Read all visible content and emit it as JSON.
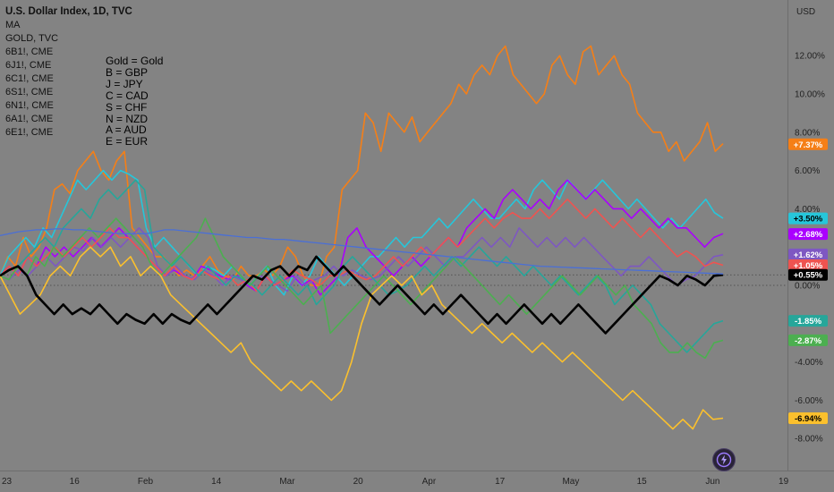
{
  "legend": {
    "title": "U.S. Dollar Index, 1D, TVC",
    "items": [
      "MA",
      "GOLD, TVC",
      "6B1!, CME",
      "6J1!, CME",
      "6C1!, CME",
      "6S1!, CME",
      "6N1!, CME",
      "6A1!, CME",
      "6E1!, CME"
    ]
  },
  "key_note": [
    "Gold = Gold",
    "B = GBP",
    "J = JPY",
    "C = CAD",
    "S = CHF",
    "N = NZD",
    "A = AUD",
    "E = EUR"
  ],
  "currency_label": "USD",
  "chart_data": {
    "type": "line",
    "x_tick_labels": [
      "23",
      "16",
      "Feb",
      "14",
      "Mar",
      "20",
      "Apr",
      "17",
      "May",
      "15",
      "Jun",
      "19"
    ],
    "y_ticks": [
      "12.00%",
      "10.00%",
      "8.00%",
      "6.00%",
      "4.00%",
      "0.00%",
      "-4.00%",
      "-6.00%",
      "-8.00%"
    ],
    "ylim": [
      -9.5,
      14
    ],
    "series_badges": [
      {
        "label": "+7.37%",
        "value": 7.37,
        "color": "#f57f17"
      },
      {
        "label": "+3.50%",
        "value": 3.5,
        "color": "#26c6da"
      },
      {
        "label": "+2.68%",
        "value": 2.68,
        "color": "#aa00ff"
      },
      {
        "label": "+1.62%",
        "value": 1.62,
        "color": "#7e57c2"
      },
      {
        "label": "+1.05%",
        "value": 1.05,
        "color": "#ef5350"
      },
      {
        "label": "+0.55%",
        "value": 0.55,
        "color": "#000000"
      },
      {
        "label": "-1.85%",
        "value": -1.85,
        "color": "#26a69a"
      },
      {
        "label": "-2.87%",
        "value": -2.87,
        "color": "#4caf50"
      },
      {
        "label": "-6.94%",
        "value": -6.94,
        "color": "#fbc02d"
      }
    ],
    "series": [
      {
        "color": "#f57f17",
        "values": [
          0.5,
          1.5,
          1.0,
          2.5,
          1.5,
          2.0,
          3.0,
          5.0,
          5.3,
          4.8,
          6.0,
          6.5,
          7.0,
          6.0,
          5.5,
          6.5,
          7.0,
          3.0,
          2.5,
          2.0,
          1.5,
          1.5,
          1.0,
          0.5,
          0.8,
          0.5,
          1.0,
          1.5,
          0.8,
          0.5,
          0.3,
          1.0,
          0.5,
          0.5,
          0.8,
          0.5,
          1.0,
          2.0,
          1.5,
          0.5,
          0.0,
          0.0,
          1.5,
          2.0,
          5.0,
          5.5,
          6.0,
          9.0,
          8.5,
          7.0,
          9.0,
          8.5,
          8.0,
          8.8,
          7.5,
          8.0,
          8.5,
          9.0,
          9.5,
          10.5,
          10.0,
          11.0,
          11.5,
          11.0,
          12.0,
          12.5,
          11.0,
          10.5,
          10.0,
          9.5,
          10.0,
          11.5,
          12.0,
          11.0,
          10.5,
          12.2,
          12.5,
          11.0,
          11.5,
          12.0,
          11.0,
          10.5,
          9.0,
          8.5,
          8.0,
          8.0,
          7.0,
          7.5,
          6.5,
          7.0,
          7.5,
          8.5,
          7.0,
          7.4
        ]
      },
      {
        "color": "#26c6da",
        "values": [
          0.5,
          1.5,
          2.0,
          2.5,
          2.0,
          3.0,
          2.5,
          3.5,
          4.5,
          5.5,
          5.0,
          5.5,
          6.0,
          5.5,
          6.0,
          5.8,
          5.5,
          3.0,
          2.0,
          2.5,
          2.0,
          1.5,
          1.0,
          0.5,
          1.0,
          0.8,
          0.5,
          1.0,
          0.5,
          0.0,
          0.5,
          1.0,
          0.0,
          -0.5,
          0.5,
          0.0,
          0.5,
          1.5,
          1.0,
          0.5,
          0.0,
          0.5,
          1.0,
          1.5,
          1.5,
          2.0,
          2.5,
          2.0,
          2.5,
          2.5,
          3.0,
          3.5,
          3.0,
          3.5,
          4.0,
          4.5,
          4.0,
          3.5,
          3.5,
          4.0,
          4.5,
          4.0,
          5.0,
          5.5,
          5.0,
          4.5,
          5.5,
          5.0,
          4.5,
          5.0,
          5.5,
          5.0,
          4.5,
          4.0,
          4.5,
          4.0,
          3.5,
          3.0,
          3.5,
          3.0,
          3.5,
          4.0,
          4.5,
          3.8,
          3.5
        ]
      },
      {
        "color": "#aa00ff",
        "values": [
          0.5,
          1.0,
          0.5,
          1.5,
          1.0,
          2.0,
          1.5,
          2.0,
          1.5,
          2.0,
          2.5,
          2.0,
          2.5,
          3.0,
          2.5,
          2.0,
          1.5,
          1.0,
          0.5,
          0.8,
          0.5,
          0.3,
          1.0,
          0.8,
          0.5,
          0.3,
          0.5,
          0.0,
          -0.3,
          0.5,
          0.0,
          0.3,
          0.5,
          0.0,
          0.3,
          -0.5,
          0.0,
          0.5,
          2.5,
          3.0,
          2.0,
          1.5,
          1.0,
          0.5,
          1.0,
          1.5,
          1.0,
          1.5,
          2.0,
          2.5,
          2.0,
          3.0,
          3.5,
          4.0,
          3.5,
          4.5,
          5.0,
          4.5,
          4.0,
          4.5,
          4.0,
          5.0,
          5.5,
          5.0,
          4.5,
          5.0,
          4.5,
          4.0,
          4.0,
          3.5,
          4.0,
          3.5,
          3.0,
          3.5,
          3.0,
          3.0,
          2.5,
          2.0,
          2.5,
          2.7
        ]
      },
      {
        "color": "#7e57c2",
        "values": [
          0.5,
          0.3,
          0.8,
          0.5,
          1.0,
          1.5,
          1.0,
          1.5,
          2.0,
          1.8,
          2.5,
          2.0,
          2.5,
          2.0,
          2.5,
          3.0,
          2.5,
          1.0,
          0.5,
          1.0,
          0.5,
          0.3,
          0.8,
          0.5,
          0.0,
          0.5,
          0.3,
          0.0,
          0.5,
          0.3,
          0.0,
          -0.3,
          0.5,
          0.0,
          0.3,
          0.5,
          1.0,
          0.5,
          0.8,
          0.5,
          0.3,
          0.5,
          1.0,
          1.5,
          1.0,
          1.5,
          2.0,
          1.5,
          1.0,
          1.5,
          1.5,
          2.0,
          2.5,
          2.0,
          2.5,
          2.0,
          3.0,
          2.5,
          2.0,
          2.5,
          2.0,
          2.5,
          2.0,
          2.5,
          2.0,
          1.5,
          1.0,
          0.5,
          1.0,
          1.0,
          1.5,
          1.0,
          0.5,
          0.0,
          0.3,
          0.5,
          1.0,
          1.5,
          1.6
        ]
      },
      {
        "color": "#ef5350",
        "values": [
          0.5,
          1.0,
          0.5,
          1.5,
          1.0,
          1.5,
          2.0,
          1.5,
          2.0,
          2.5,
          2.0,
          2.5,
          3.0,
          2.5,
          2.5,
          2.0,
          1.5,
          1.0,
          0.5,
          1.0,
          0.5,
          0.3,
          0.8,
          0.5,
          0.3,
          0.5,
          0.0,
          0.3,
          -0.3,
          0.5,
          0.0,
          0.3,
          0.8,
          0.5,
          0.3,
          0.0,
          0.5,
          0.5,
          0.8,
          0.5,
          0.3,
          0.5,
          1.0,
          1.5,
          1.0,
          1.5,
          2.0,
          1.5,
          2.0,
          2.5,
          2.0,
          2.5,
          3.0,
          3.5,
          3.0,
          3.5,
          3.8,
          3.5,
          3.5,
          4.0,
          3.5,
          4.0,
          4.5,
          4.0,
          3.5,
          4.0,
          3.5,
          3.0,
          3.5,
          3.0,
          2.5,
          3.0,
          2.5,
          2.0,
          1.5,
          1.8,
          1.5,
          1.0,
          1.2,
          1.05
        ]
      },
      {
        "color": "#26a69a",
        "values": [
          0.5,
          0.8,
          1.0,
          1.5,
          2.0,
          2.5,
          2.0,
          3.0,
          3.5,
          4.0,
          3.5,
          4.5,
          5.0,
          4.5,
          5.0,
          5.5,
          5.0,
          2.0,
          1.5,
          1.0,
          1.5,
          1.0,
          0.5,
          1.0,
          0.5,
          0.0,
          0.5,
          0.3,
          0.0,
          -0.5,
          0.0,
          0.5,
          0.0,
          -0.5,
          0.0,
          -1.0,
          -0.5,
          0.0,
          1.0,
          1.5,
          1.0,
          0.5,
          0.0,
          -0.5,
          -0.3,
          0.0,
          0.5,
          1.0,
          0.5,
          1.0,
          1.5,
          1.0,
          1.5,
          2.0,
          1.5,
          1.0,
          1.5,
          1.0,
          0.5,
          1.0,
          0.5,
          0.0,
          0.5,
          0.0,
          -0.5,
          0.0,
          0.5,
          0.0,
          -1.0,
          -0.5,
          0.0,
          -0.5,
          -1.0,
          -2.0,
          -2.5,
          -3.0,
          -3.5,
          -3.0,
          -2.5,
          -2.0,
          -1.85
        ]
      },
      {
        "color": "#4caf50",
        "values": [
          0.5,
          0.3,
          1.0,
          0.5,
          1.5,
          1.0,
          2.0,
          1.5,
          2.0,
          2.5,
          3.0,
          2.5,
          3.0,
          3.5,
          3.0,
          2.5,
          2.0,
          1.0,
          0.5,
          1.0,
          1.5,
          2.0,
          2.5,
          3.5,
          2.5,
          1.5,
          1.0,
          0.5,
          0.0,
          0.5,
          1.0,
          0.5,
          0.0,
          -0.5,
          -1.0,
          -0.5,
          0.0,
          -2.5,
          -2.0,
          -1.5,
          -1.0,
          -0.5,
          0.0,
          0.5,
          0.0,
          -0.5,
          -1.0,
          -0.5,
          0.0,
          0.5,
          1.0,
          1.5,
          1.0,
          0.5,
          0.0,
          -0.5,
          -1.0,
          -0.5,
          -1.0,
          -1.5,
          -1.0,
          -0.5,
          0.0,
          0.5,
          0.0,
          -0.5,
          0.0,
          0.5,
          0.0,
          -0.5,
          0.0,
          -1.0,
          -1.5,
          -2.0,
          -3.0,
          -3.5,
          -3.5,
          -3.0,
          -3.5,
          -3.8,
          -3.0,
          -2.87
        ]
      },
      {
        "color": "#fbc02d",
        "values": [
          0.5,
          -0.5,
          -1.5,
          -1.0,
          -0.5,
          0.5,
          1.0,
          0.5,
          1.5,
          2.0,
          1.5,
          2.0,
          1.0,
          1.5,
          0.5,
          1.0,
          0.5,
          -0.5,
          -1.0,
          -1.5,
          -2.0,
          -2.5,
          -3.0,
          -3.5,
          -3.0,
          -4.0,
          -4.5,
          -5.0,
          -5.5,
          -5.0,
          -5.5,
          -5.0,
          -5.5,
          -6.0,
          -5.5,
          -4.0,
          -2.0,
          -0.5,
          0.0,
          0.5,
          0.0,
          0.5,
          -0.5,
          0.0,
          -1.0,
          -1.5,
          -2.0,
          -2.5,
          -2.0,
          -2.5,
          -3.0,
          -2.5,
          -3.0,
          -3.5,
          -3.0,
          -3.5,
          -4.0,
          -3.5,
          -4.0,
          -4.5,
          -5.0,
          -5.5,
          -6.0,
          -5.5,
          -6.0,
          -6.5,
          -7.0,
          -7.5,
          -7.0,
          -7.5,
          -6.5,
          -7.0,
          -6.94
        ]
      },
      {
        "color": "#000000",
        "values": [
          0.5,
          0.8,
          1.0,
          0.5,
          -0.5,
          -1.0,
          -1.5,
          -1.0,
          -1.5,
          -1.2,
          -1.5,
          -1.0,
          -1.5,
          -2.0,
          -1.5,
          -1.8,
          -2.0,
          -1.5,
          -2.0,
          -1.5,
          -1.8,
          -2.0,
          -1.5,
          -1.0,
          -1.5,
          -1.0,
          -0.5,
          0.0,
          0.5,
          0.3,
          0.8,
          1.0,
          0.5,
          1.0,
          0.8,
          1.5,
          1.0,
          0.5,
          1.0,
          0.5,
          0.0,
          -0.5,
          -1.0,
          -0.5,
          0.0,
          -0.5,
          -1.0,
          -1.5,
          -1.0,
          -1.5,
          -1.0,
          -0.5,
          -1.0,
          -1.5,
          -2.0,
          -1.5,
          -2.0,
          -1.5,
          -1.0,
          -1.5,
          -2.0,
          -1.5,
          -2.0,
          -1.5,
          -1.0,
          -1.5,
          -2.0,
          -2.5,
          -2.0,
          -1.5,
          -1.0,
          -0.5,
          0.0,
          0.5,
          0.3,
          0.0,
          0.5,
          0.3,
          0.0,
          0.5,
          0.55
        ]
      },
      {
        "color": "#4a6fd6",
        "values": [
          2.6,
          2.7,
          2.8,
          2.85,
          2.9,
          2.9,
          2.95,
          2.95,
          2.9,
          2.9,
          2.85,
          2.8,
          2.75,
          2.7,
          2.7,
          2.7,
          2.7,
          2.8,
          2.9,
          2.9,
          2.85,
          2.8,
          2.75,
          2.7,
          2.65,
          2.6,
          2.55,
          2.5,
          2.5,
          2.45,
          2.4,
          2.4,
          2.35,
          2.3,
          2.25,
          2.2,
          2.15,
          2.1,
          2.05,
          2.0,
          1.95,
          1.9,
          1.85,
          1.8,
          1.75,
          1.7,
          1.65,
          1.6,
          1.55,
          1.5,
          1.45,
          1.4,
          1.35,
          1.3,
          1.25,
          1.2,
          1.15,
          1.1,
          1.05,
          1.0,
          0.98,
          0.96,
          0.94,
          0.92,
          0.9,
          0.88,
          0.86,
          0.84,
          0.82,
          0.8,
          0.78,
          0.76,
          0.74,
          0.72,
          0.7,
          0.68,
          0.66,
          0.64,
          0.62,
          0.6
        ]
      }
    ]
  }
}
